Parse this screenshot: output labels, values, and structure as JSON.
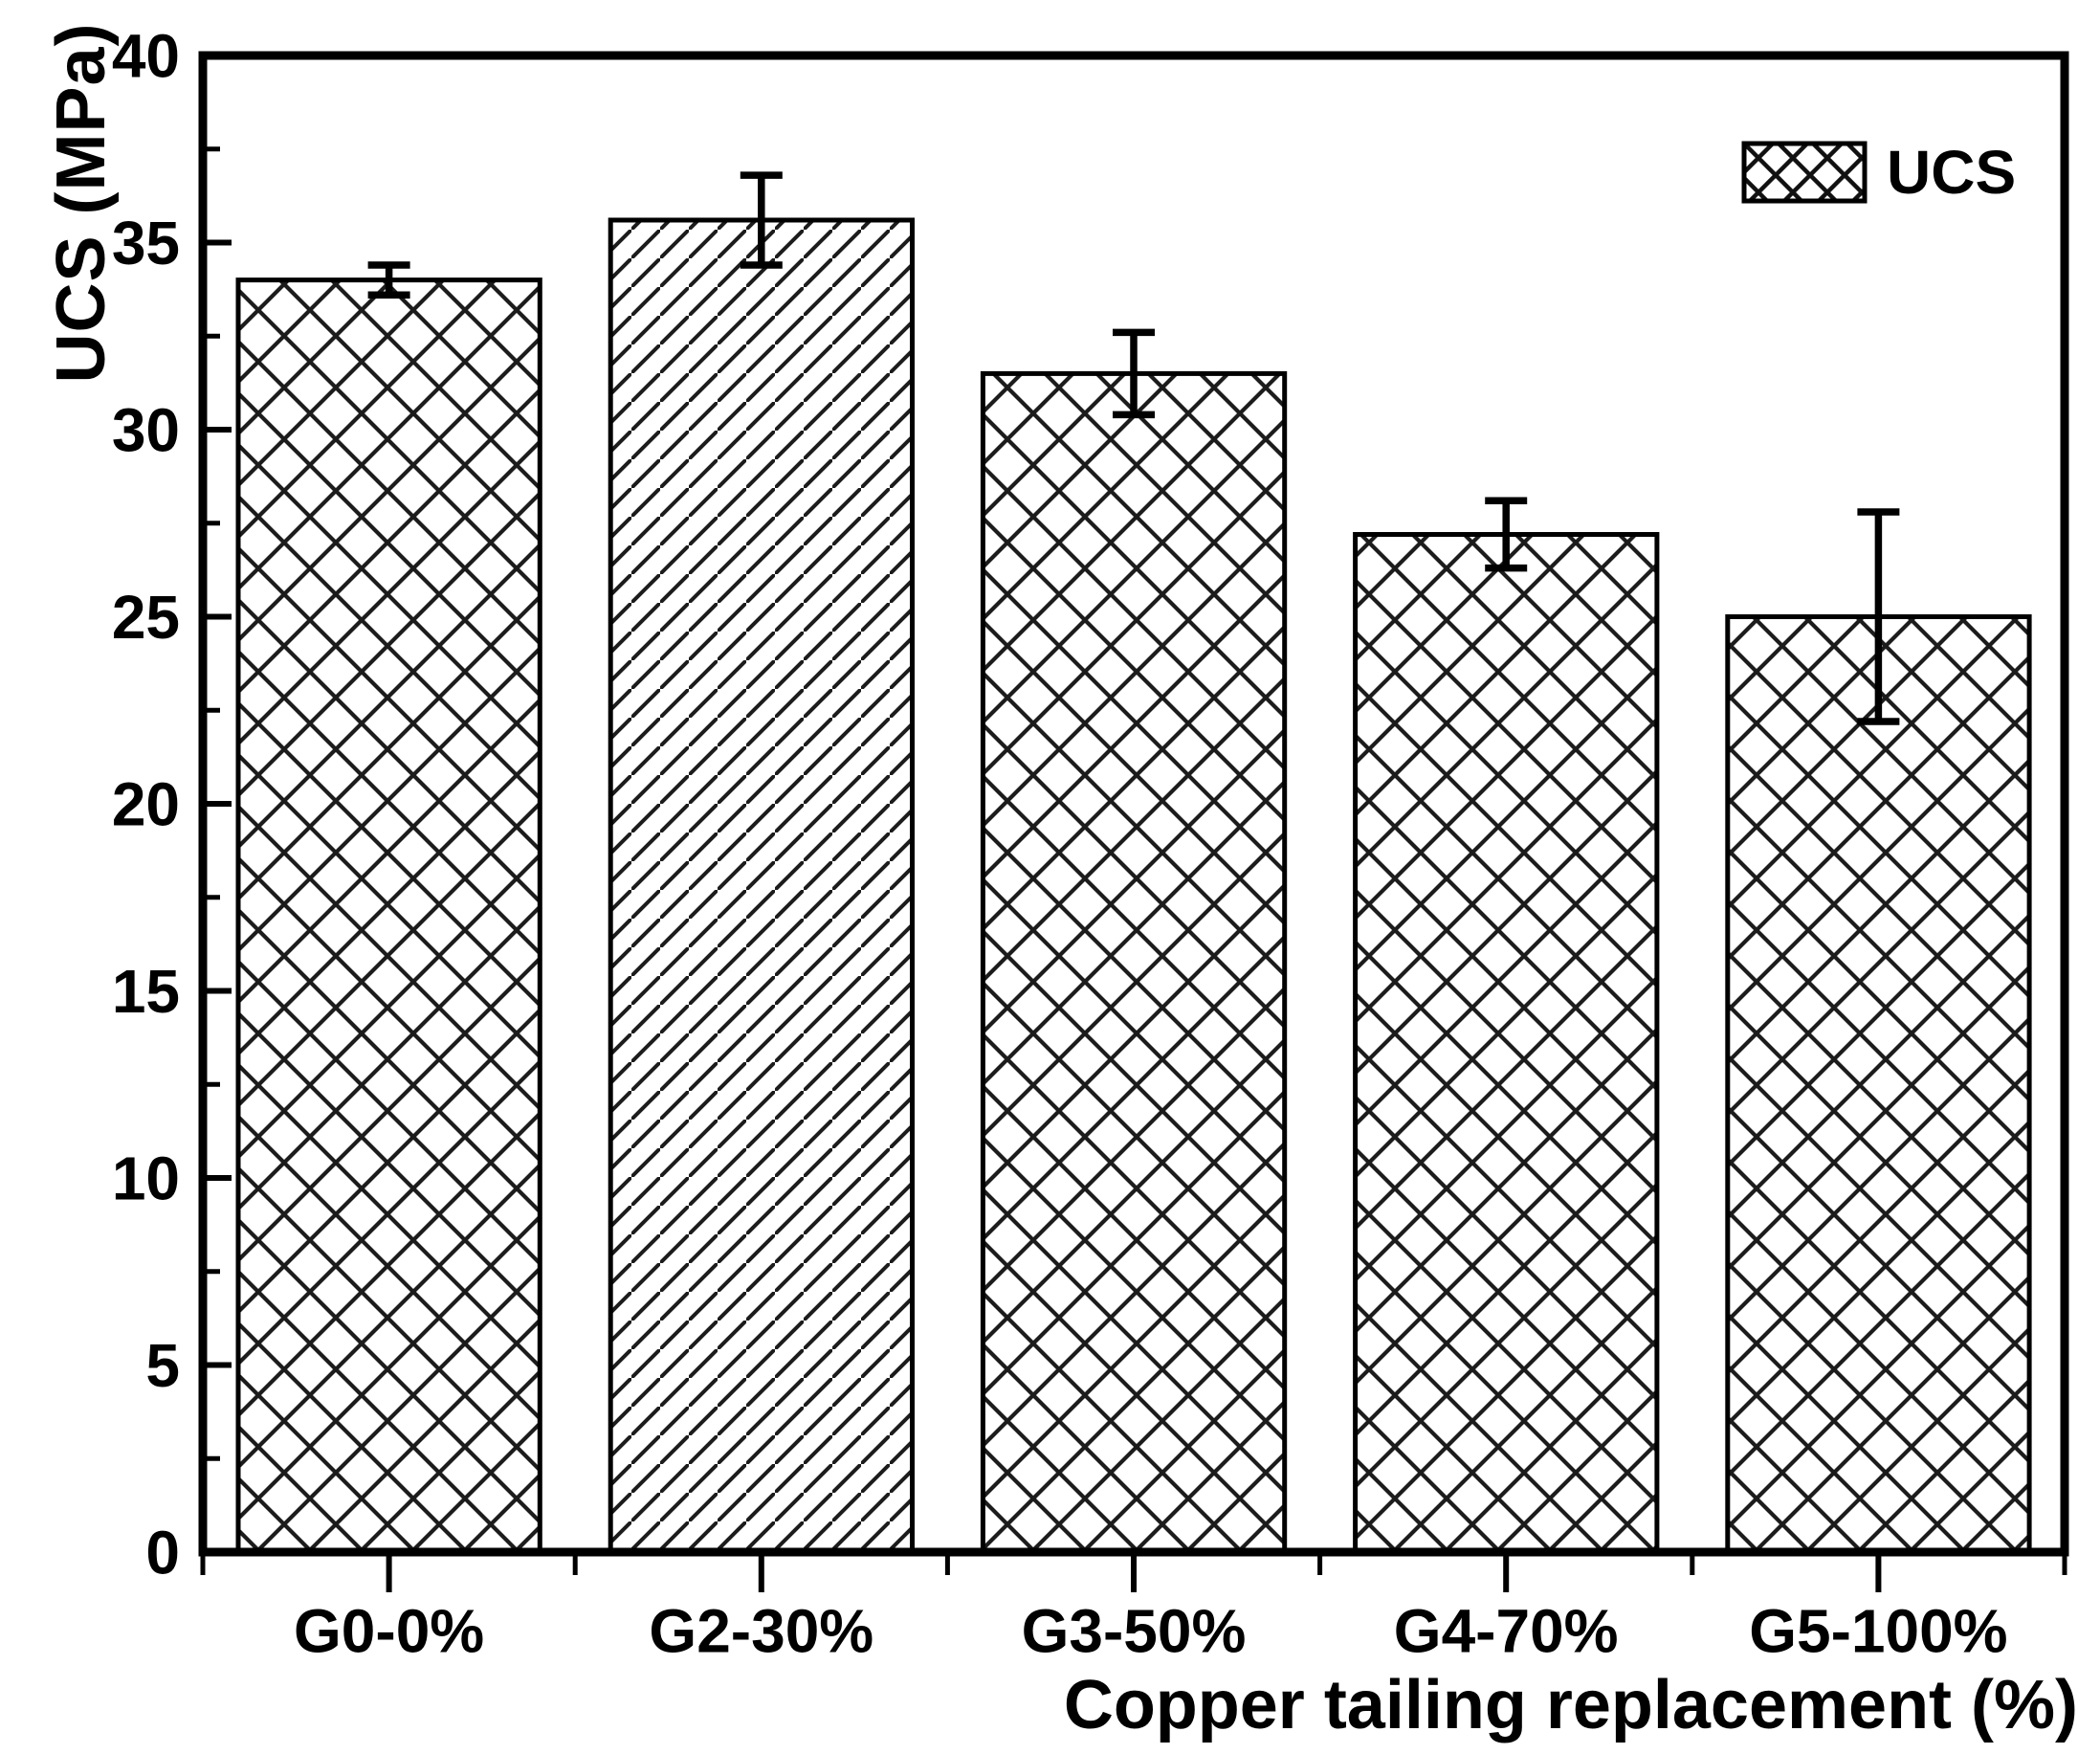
{
  "chart_data": {
    "type": "bar",
    "title": "",
    "xlabel": "Copper tailing replacement (%)",
    "ylabel": "UCS (MPa)",
    "legend_label": "UCS",
    "legend_position": "top-right",
    "categories": [
      "G0-0%",
      "G2-30%",
      "G3-50%",
      "G4-70%",
      "G5-100%"
    ],
    "series": [
      {
        "name": "UCS",
        "values": [
          34.0,
          35.6,
          31.5,
          27.2,
          25.0
        ],
        "errors": [
          0.4,
          1.2,
          1.1,
          0.9,
          2.8
        ]
      }
    ],
    "bar_patterns": [
      "crosshatch",
      "diagonal",
      "crosshatch",
      "crosshatch",
      "crosshatch"
    ],
    "legend_swatch_pattern": "crosshatch",
    "ylim": [
      0,
      40
    ],
    "ytick_step": 5,
    "yminor_step": 2.5,
    "ytick_labels": [
      "0",
      "5",
      "10",
      "15",
      "20",
      "25",
      "30",
      "35",
      "40"
    ],
    "grid": "off",
    "frame": "full-box",
    "colors": {
      "stroke": "#000000",
      "pattern_line": "#1c1c1c",
      "background": "#ffffff",
      "bar_fill": "#ffffff"
    }
  }
}
